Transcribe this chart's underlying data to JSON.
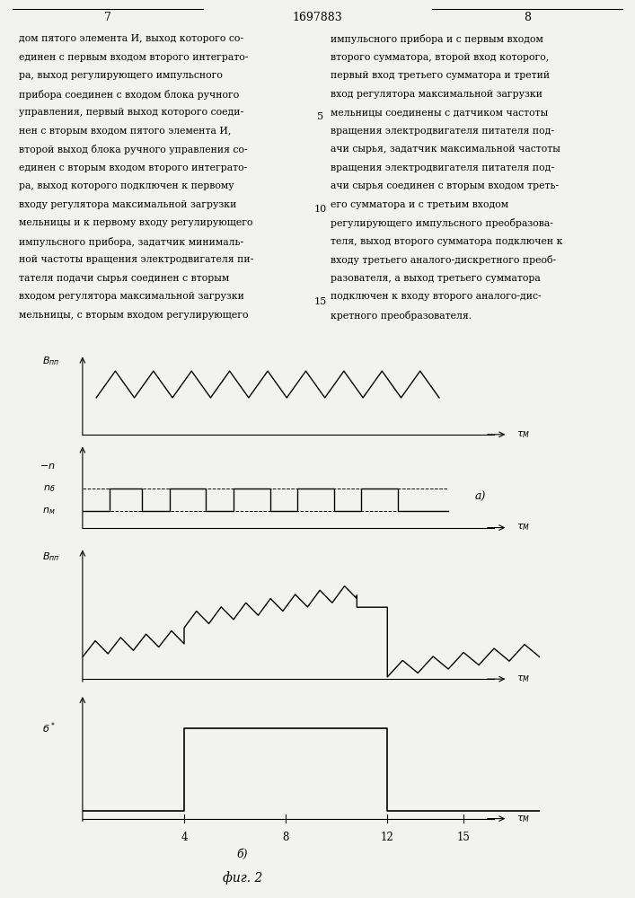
{
  "page_number_left": "7",
  "page_number_center": "1697883",
  "page_number_right": "8",
  "background_color": "#f2f2ee",
  "text_color": "#000000",
  "left_text_lines": [
    "дом пятого элемента И, выход которого со-",
    "единен с первым входом второго интеграто-",
    "ра, выход регулирующего импульсного",
    "прибора соединен с входом блока ручного",
    "управления, первый выход которого соеди-",
    "нен с вторым входом пятого элемента И,",
    "второй выход блока ручного управления со-",
    "единен с вторым входом второго интеграто-",
    "ра, выход которого подключен к первому",
    "входу регулятора максимальной загрузки",
    "мельницы и к первому входу регулирующего",
    "импульсного прибора, задатчик минималь-",
    "ной частоты вращения электродвигателя пи-",
    "тателя подачи сырья соединен с вторым",
    "входом регулятора максимальной загрузки",
    "мельницы, с вторым входом регулирующего"
  ],
  "right_text_lines": [
    "импульсного прибора и с первым входом",
    "второго сумматора, второй вход которого,",
    "первый вход третьего сумматора и третий",
    "вход регулятора максимальной загрузки",
    "мельницы соединены с датчиком частоты",
    "вращения электродвигателя питателя под-",
    "ачи сырья, задатчик максимальной частоты",
    "вращения электродвигателя питателя под-",
    "ачи сырья соединен с вторым входом треть-",
    "его сумматора и с третьим входом",
    "регулирующего импульсного преобразова-",
    "теля, выход второго сумматора подключен к",
    "входу третьего аналого-дискретного преоб-",
    "разователя, а выход третьего сумматора",
    "подключен к входу второго аналого-дис-",
    "кретного преобразователя."
  ],
  "line_numbers": [
    "5",
    "10",
    "15"
  ],
  "line_number_rows": [
    4,
    9,
    14
  ],
  "tmax": 18,
  "x_ticks": [
    4,
    8,
    12,
    15
  ]
}
